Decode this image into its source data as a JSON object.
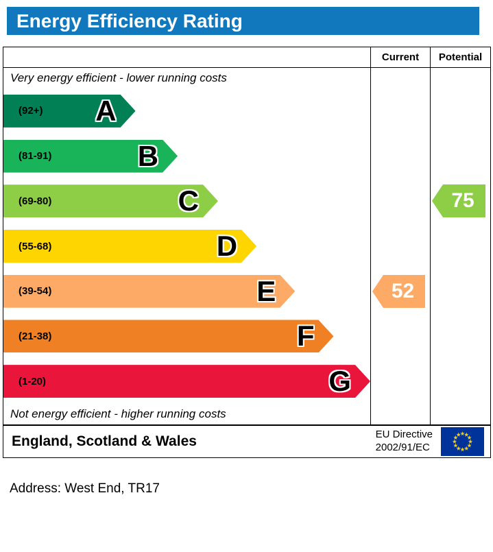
{
  "title": "Energy Efficiency Rating",
  "columns": {
    "current": "Current",
    "potential": "Potential"
  },
  "top_note": "Very energy efficient - lower running costs",
  "bottom_note": "Not energy efficient - higher running costs",
  "bands": [
    {
      "letter": "A",
      "range": "(92+)",
      "color": "#008054",
      "width_pct": 36
    },
    {
      "letter": "B",
      "range": "(81-91)",
      "color": "#19b459",
      "width_pct": 47.5
    },
    {
      "letter": "C",
      "range": "(69-80)",
      "color": "#8dce46",
      "width_pct": 58.5
    },
    {
      "letter": "D",
      "range": "(55-68)",
      "color": "#ffd500",
      "width_pct": 69
    },
    {
      "letter": "E",
      "range": "(39-54)",
      "color": "#fcaa65",
      "width_pct": 79.5
    },
    {
      "letter": "F",
      "range": "(21-38)",
      "color": "#ef8023",
      "width_pct": 90
    },
    {
      "letter": "G",
      "range": "(1-20)",
      "color": "#e9153b",
      "width_pct": 100
    }
  ],
  "current": {
    "value": "52",
    "band": "E",
    "color": "#fcaa65"
  },
  "potential": {
    "value": "75",
    "band": "C",
    "color": "#8dce46"
  },
  "footer": {
    "region": "England, Scotland & Wales",
    "directive_line1": "EU Directive",
    "directive_line2": "2002/91/EC"
  },
  "address": "Address: West End, TR17",
  "colors": {
    "title_bar": "#1278be",
    "eu_flag_blue": "#003399",
    "eu_flag_stars": "#ffcc00"
  },
  "chart_data": {
    "type": "bar",
    "title": "Energy Efficiency Rating",
    "categories": [
      "A",
      "B",
      "C",
      "D",
      "E",
      "F",
      "G"
    ],
    "band_ranges": [
      "92+",
      "81-91",
      "69-80",
      "55-68",
      "39-54",
      "21-38",
      "1-20"
    ],
    "band_colors": [
      "#008054",
      "#19b459",
      "#8dce46",
      "#ffd500",
      "#fcaa65",
      "#ef8023",
      "#e9153b"
    ],
    "series": [
      {
        "name": "Current",
        "value": 52,
        "band": "E"
      },
      {
        "name": "Potential",
        "value": 75,
        "band": "C"
      }
    ],
    "xlim": [
      1,
      100
    ],
    "notes": [
      "Very energy efficient - lower running costs",
      "Not energy efficient - higher running costs"
    ],
    "region": "England, Scotland & Wales",
    "directive": "EU Directive 2002/91/EC"
  }
}
